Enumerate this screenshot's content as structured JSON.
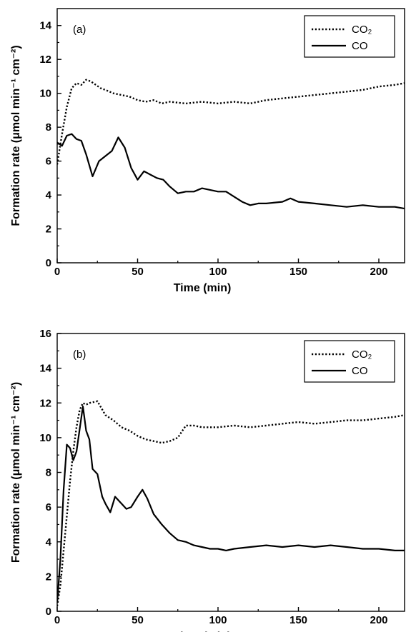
{
  "chart_data": [
    {
      "type": "line",
      "panel_label": "(a)",
      "xlabel": "Time (min)",
      "ylabel": "Formation rate (μmol min⁻¹ cm⁻²)",
      "xlim": [
        0,
        216
      ],
      "ylim": [
        0,
        15
      ],
      "xticks": [
        0,
        50,
        100,
        150,
        200
      ],
      "yticks": [
        0,
        2,
        4,
        6,
        8,
        10,
        12,
        14
      ],
      "grid": false,
      "legend_position": "top-right",
      "series": [
        {
          "name": "CO₂",
          "style": "dotted",
          "x": [
            0,
            3,
            6,
            9,
            12,
            15,
            18,
            21,
            24,
            27,
            30,
            35,
            40,
            45,
            50,
            55,
            60,
            65,
            70,
            80,
            90,
            100,
            110,
            120,
            130,
            140,
            150,
            160,
            170,
            180,
            190,
            200,
            210,
            216
          ],
          "y": [
            5.8,
            7.6,
            9.2,
            10.3,
            10.6,
            10.5,
            10.8,
            10.7,
            10.5,
            10.3,
            10.2,
            10.0,
            9.9,
            9.8,
            9.6,
            9.5,
            9.6,
            9.4,
            9.5,
            9.4,
            9.5,
            9.4,
            9.5,
            9.4,
            9.6,
            9.7,
            9.8,
            9.9,
            10.0,
            10.1,
            10.2,
            10.4,
            10.5,
            10.6
          ]
        },
        {
          "name": "CO",
          "style": "solid",
          "x": [
            0,
            3,
            6,
            9,
            12,
            15,
            18,
            22,
            26,
            30,
            34,
            38,
            42,
            46,
            50,
            54,
            58,
            62,
            66,
            70,
            75,
            80,
            85,
            90,
            95,
            100,
            105,
            110,
            115,
            120,
            125,
            130,
            140,
            145,
            150,
            160,
            170,
            180,
            190,
            200,
            210,
            216
          ],
          "y": [
            7.1,
            6.9,
            7.5,
            7.6,
            7.3,
            7.2,
            6.4,
            5.1,
            6.0,
            6.3,
            6.6,
            7.4,
            6.8,
            5.6,
            4.9,
            5.4,
            5.2,
            5.0,
            4.9,
            4.5,
            4.1,
            4.2,
            4.2,
            4.4,
            4.3,
            4.2,
            4.2,
            3.9,
            3.6,
            3.4,
            3.5,
            3.5,
            3.6,
            3.8,
            3.6,
            3.5,
            3.4,
            3.3,
            3.4,
            3.3,
            3.3,
            3.2
          ]
        }
      ]
    },
    {
      "type": "line",
      "panel_label": "(b)",
      "xlabel": "Time (min)",
      "ylabel": "Formation rate (μmol min⁻¹ cm⁻²)",
      "xlim": [
        0,
        216
      ],
      "ylim": [
        0,
        16
      ],
      "xticks": [
        0,
        50,
        100,
        150,
        200
      ],
      "yticks": [
        0,
        2,
        4,
        6,
        8,
        10,
        12,
        14,
        16
      ],
      "grid": false,
      "legend_position": "top-right",
      "series": [
        {
          "name": "CO₂",
          "style": "dotted",
          "x": [
            0,
            2,
            4,
            6,
            8,
            10,
            12,
            14,
            16,
            18,
            20,
            25,
            30,
            35,
            40,
            45,
            50,
            55,
            60,
            65,
            70,
            75,
            80,
            85,
            90,
            100,
            110,
            120,
            130,
            140,
            150,
            160,
            170,
            180,
            190,
            200,
            210,
            216
          ],
          "y": [
            0.3,
            1.5,
            3.5,
            5.5,
            7.5,
            9.2,
            10.6,
            11.6,
            12.0,
            11.9,
            12.0,
            12.1,
            11.3,
            11.0,
            10.6,
            10.4,
            10.1,
            9.9,
            9.8,
            9.7,
            9.8,
            10.0,
            10.7,
            10.7,
            10.6,
            10.6,
            10.7,
            10.6,
            10.7,
            10.8,
            10.9,
            10.8,
            10.9,
            11.0,
            11.0,
            11.1,
            11.2,
            11.3
          ]
        },
        {
          "name": "CO",
          "style": "solid",
          "x": [
            0,
            2,
            4,
            6,
            8,
            10,
            12,
            14,
            16,
            18,
            20,
            22,
            25,
            28,
            30,
            33,
            36,
            40,
            43,
            46,
            50,
            53,
            56,
            60,
            65,
            70,
            75,
            80,
            85,
            90,
            95,
            100,
            105,
            110,
            120,
            130,
            140,
            150,
            160,
            170,
            180,
            190,
            200,
            210,
            216
          ],
          "y": [
            0.5,
            3.0,
            7.0,
            9.6,
            9.4,
            8.7,
            9.2,
            10.5,
            11.8,
            10.4,
            9.9,
            8.2,
            7.9,
            6.6,
            6.2,
            5.7,
            6.6,
            6.2,
            5.9,
            6.0,
            6.6,
            7.0,
            6.5,
            5.6,
            5.0,
            4.5,
            4.1,
            4.0,
            3.8,
            3.7,
            3.6,
            3.6,
            3.5,
            3.6,
            3.7,
            3.8,
            3.7,
            3.8,
            3.7,
            3.8,
            3.7,
            3.6,
            3.6,
            3.5,
            3.5
          ]
        }
      ]
    }
  ]
}
